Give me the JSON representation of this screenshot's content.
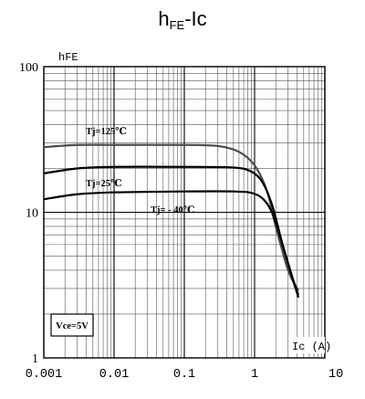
{
  "title": {
    "main": "h",
    "sub": "FE",
    "rest": "-Ic"
  },
  "chart_data": {
    "type": "line",
    "title": "hFE-Ic",
    "xlabel": "Ic (A)",
    "ylabel": "hFE",
    "x_scale": "log",
    "y_scale": "log",
    "xlim": [
      0.001,
      10
    ],
    "ylim": [
      1,
      100
    ],
    "grid": true,
    "x_ticks": [
      {
        "value": 0.001,
        "label": "0.001"
      },
      {
        "value": 0.01,
        "label": "0.01"
      },
      {
        "value": 0.1,
        "label": "0.1"
      },
      {
        "value": 1,
        "label": "1"
      },
      {
        "value": 10,
        "label": "10"
      }
    ],
    "y_ticks": [
      {
        "value": 1,
        "label": "1"
      },
      {
        "value": 10,
        "label": "10"
      },
      {
        "value": 100,
        "label": "100"
      }
    ],
    "series": [
      {
        "name": "Tj=125℃",
        "color": "#4a4a4a",
        "points": [
          [
            0.001,
            28
          ],
          [
            0.003,
            29
          ],
          [
            0.01,
            29
          ],
          [
            0.1,
            29
          ],
          [
            0.3,
            28.5
          ],
          [
            0.6,
            26
          ],
          [
            1.0,
            21
          ],
          [
            1.5,
            14
          ],
          [
            2.0,
            8
          ],
          [
            3.0,
            4.0
          ],
          [
            4.2,
            2.9
          ]
        ]
      },
      {
        "name": "Tj=25℃",
        "color": "#000000",
        "points": [
          [
            0.001,
            18.5
          ],
          [
            0.003,
            20
          ],
          [
            0.01,
            20.5
          ],
          [
            0.1,
            20.5
          ],
          [
            0.5,
            20.3
          ],
          [
            0.9,
            19
          ],
          [
            1.3,
            16
          ],
          [
            1.8,
            11
          ],
          [
            2.5,
            6
          ],
          [
            3.3,
            3.8
          ],
          [
            4.2,
            2.6
          ]
        ]
      },
      {
        "name": "Tj= - 40℃",
        "color": "#000000",
        "points": [
          [
            0.001,
            12.3
          ],
          [
            0.003,
            13.3
          ],
          [
            0.01,
            13.7
          ],
          [
            0.1,
            13.9
          ],
          [
            0.5,
            13.9
          ],
          [
            1.0,
            13.4
          ],
          [
            1.5,
            11.5
          ],
          [
            2.0,
            8.5
          ],
          [
            2.8,
            5
          ],
          [
            3.5,
            3.5
          ],
          [
            4.2,
            2.7
          ]
        ]
      }
    ],
    "annotation_box": "Vce=5V"
  }
}
